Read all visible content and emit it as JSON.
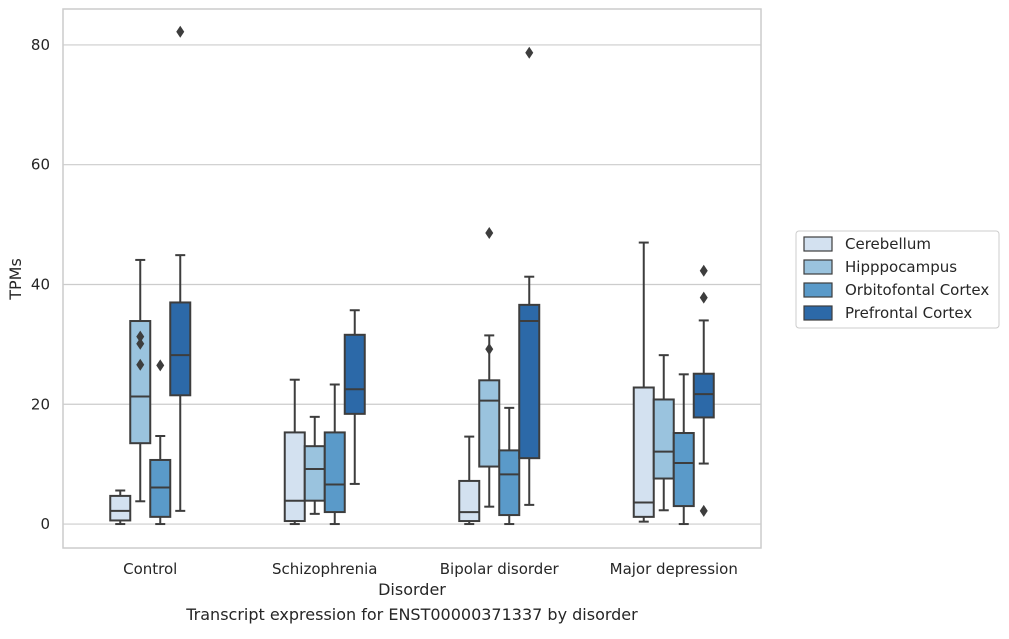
{
  "caption": "Transcript expression for ENST00000371337 by disorder",
  "chart_data": {
    "type": "box",
    "xlabel": "Disorder",
    "ylabel": "TPMs",
    "ylim": [
      -4,
      86
    ],
    "yticks": [
      0,
      20,
      40,
      60,
      80
    ],
    "grid": "horizontal",
    "legend_placement": "right",
    "categories": [
      "Control",
      "Schizophrenia",
      "Bipolar disorder",
      "Major depression"
    ],
    "series": [
      {
        "name": "Cerebellum",
        "color": "#d3e1f0",
        "boxes": [
          {
            "whislo": 0,
            "q1": 0.6,
            "med": 2.2,
            "q3": 4.7,
            "whishi": 5.6,
            "fliers": []
          },
          {
            "whislo": 0,
            "q1": 0.5,
            "med": 3.9,
            "q3": 15.3,
            "whishi": 24.1,
            "fliers": []
          },
          {
            "whislo": 0,
            "q1": 0.5,
            "med": 2.0,
            "q3": 7.2,
            "whishi": 14.6,
            "fliers": []
          },
          {
            "whislo": 0.4,
            "q1": 1.2,
            "med": 3.6,
            "q3": 22.8,
            "whishi": 47.0,
            "fliers": []
          }
        ]
      },
      {
        "name": "Hipppocampus",
        "color": "#9ac3de",
        "boxes": [
          {
            "whislo": 3.8,
            "q1": 13.5,
            "med": 21.3,
            "q3": 33.9,
            "whishi": 44.1,
            "fliers": [
              26.6,
              30.1,
              31.3
            ]
          },
          {
            "whislo": 1.7,
            "q1": 3.9,
            "med": 9.2,
            "q3": 13.0,
            "whishi": 17.9,
            "fliers": []
          },
          {
            "whislo": 2.9,
            "q1": 9.6,
            "med": 20.6,
            "q3": 24.0,
            "whishi": 31.5,
            "fliers": [
              29.2,
              48.6
            ]
          },
          {
            "whislo": 2.3,
            "q1": 7.6,
            "med": 12.1,
            "q3": 20.8,
            "whishi": 28.2,
            "fliers": []
          }
        ]
      },
      {
        "name": "Orbitofontal Cortex",
        "color": "#5a9ac9",
        "boxes": [
          {
            "whislo": 0,
            "q1": 1.2,
            "med": 6.1,
            "q3": 10.7,
            "whishi": 14.7,
            "fliers": [
              26.5
            ]
          },
          {
            "whislo": 0,
            "q1": 2.0,
            "med": 6.6,
            "q3": 15.3,
            "whishi": 23.3,
            "fliers": []
          },
          {
            "whislo": 0,
            "q1": 1.5,
            "med": 8.3,
            "q3": 12.3,
            "whishi": 19.4,
            "fliers": []
          },
          {
            "whislo": 0,
            "q1": 3.0,
            "med": 10.2,
            "q3": 15.2,
            "whishi": 25.0,
            "fliers": []
          }
        ]
      },
      {
        "name": "Prefrontal Cortex",
        "color": "#2c69a8",
        "boxes": [
          {
            "whislo": 2.2,
            "q1": 21.5,
            "med": 28.2,
            "q3": 37.0,
            "whishi": 44.9,
            "fliers": [
              82.2
            ]
          },
          {
            "whislo": 6.7,
            "q1": 18.4,
            "med": 22.5,
            "q3": 31.6,
            "whishi": 35.7,
            "fliers": []
          },
          {
            "whislo": 3.2,
            "q1": 11.0,
            "med": 33.9,
            "q3": 36.6,
            "whishi": 41.3,
            "fliers": [
              78.7
            ]
          },
          {
            "whislo": 10.1,
            "q1": 17.8,
            "med": 21.7,
            "q3": 25.1,
            "whishi": 34.0,
            "fliers": [
              2.2,
              37.8,
              42.3
            ]
          }
        ]
      }
    ]
  }
}
